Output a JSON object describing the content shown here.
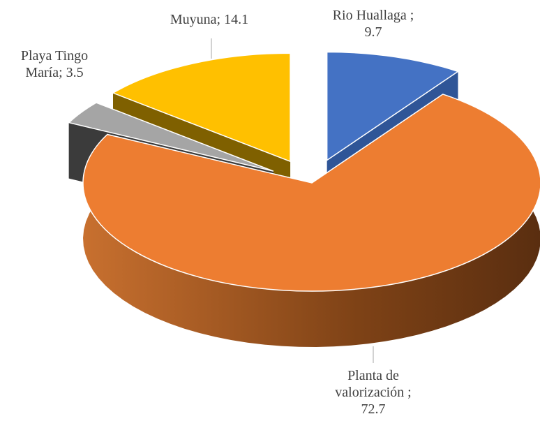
{
  "chart_data": {
    "type": "pie3d",
    "categories": [
      "Rio Huallaga ;",
      "Planta de valorización ;",
      "Playa Tingo María;",
      "Muyuna;"
    ],
    "values": [
      9.7,
      72.7,
      3.5,
      14.1
    ],
    "colors": [
      "#4472c4",
      "#ed7d31",
      "#a5a5a5",
      "#ffc000"
    ]
  }
}
